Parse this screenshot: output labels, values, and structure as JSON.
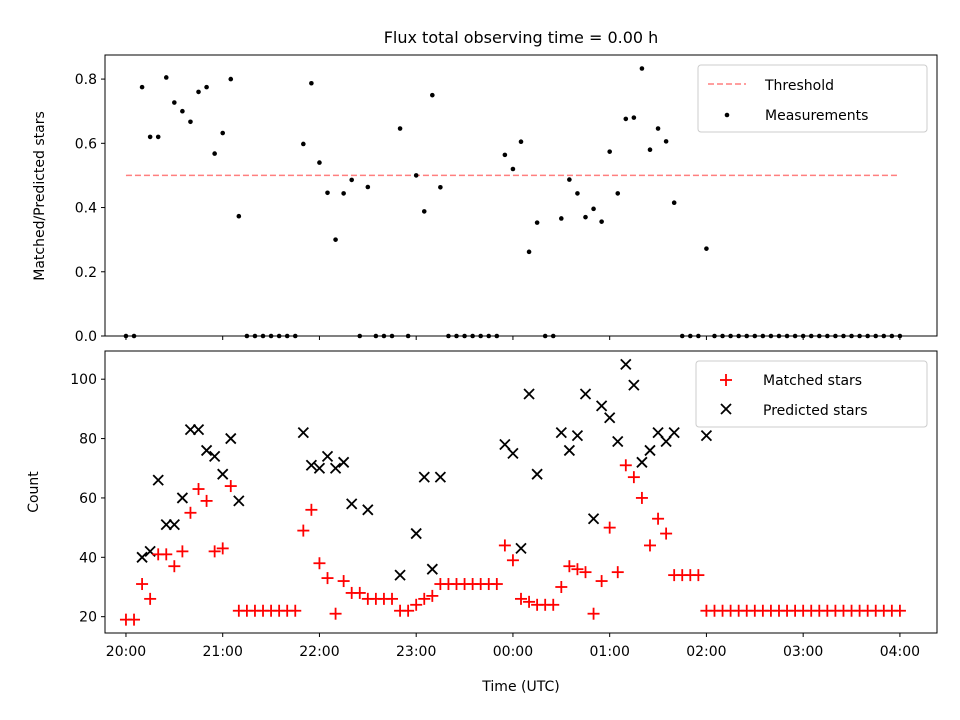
{
  "title": "Flux total observing time = 0.00 h",
  "chart_data": [
    {
      "type": "scatter",
      "panel": "top",
      "ylabel": "Matched/Predicted stars",
      "xlim": [
        "19:47",
        "04:23"
      ],
      "ylim": [
        0,
        0.875
      ],
      "yticks": [
        0.0,
        0.2,
        0.4,
        0.6,
        0.8
      ],
      "ytick_labels": [
        "0.0",
        "0.2",
        "0.4",
        "0.6",
        "0.8"
      ],
      "legend": {
        "position": "upper-right"
      },
      "threshold": {
        "name": "Threshold",
        "value": 0.5,
        "x_range": [
          "20:00",
          "04:00"
        ],
        "color": "#ff7f7f",
        "style": "dashed"
      },
      "series": [
        {
          "name": "Measurements",
          "color": "#000000",
          "marker": "dot",
          "x": [
            "20:00",
            "20:05",
            "20:10",
            "20:15",
            "20:20",
            "20:25",
            "20:30",
            "20:35",
            "20:40",
            "20:45",
            "20:50",
            "20:55",
            "21:00",
            "21:05",
            "21:10",
            "21:15",
            "21:20",
            "21:25",
            "21:30",
            "21:35",
            "21:40",
            "21:45",
            "21:50",
            "21:55",
            "22:00",
            "22:05",
            "22:10",
            "22:15",
            "22:20",
            "22:25",
            "22:30",
            "22:35",
            "22:40",
            "22:45",
            "22:50",
            "22:55",
            "23:00",
            "23:05",
            "23:10",
            "23:15",
            "23:20",
            "23:25",
            "23:30",
            "23:35",
            "23:40",
            "23:45",
            "23:50",
            "23:55",
            "00:00",
            "00:05",
            "00:10",
            "00:15",
            "00:20",
            "00:25",
            "00:30",
            "00:35",
            "00:40",
            "00:45",
            "00:50",
            "00:55",
            "01:00",
            "01:05",
            "01:10",
            "01:15",
            "01:20",
            "01:25",
            "01:30",
            "01:35",
            "01:40",
            "01:45",
            "01:50",
            "01:55",
            "02:00",
            "02:05",
            "02:10",
            "02:15",
            "02:20",
            "02:25",
            "02:30",
            "02:35",
            "02:40",
            "02:45",
            "02:50",
            "02:55",
            "03:00",
            "03:05",
            "03:10",
            "03:15",
            "03:20",
            "03:25",
            "03:30",
            "03:35",
            "03:40",
            "03:45",
            "03:50",
            "03:55",
            "04:00"
          ],
          "y": [
            0,
            0,
            0.775,
            0.62,
            0.62,
            0.805,
            0.727,
            0.7,
            0.667,
            0.76,
            0.775,
            0.568,
            0.632,
            0.8,
            0.373,
            0,
            0,
            0,
            0,
            0,
            0,
            0,
            0.598,
            0.787,
            0.54,
            0.446,
            0.3,
            0.444,
            0.486,
            0,
            0.464,
            0,
            0,
            0,
            0.646,
            0,
            0.5,
            0.388,
            0.75,
            0.463,
            0,
            0,
            0,
            0,
            0,
            0,
            0,
            0.564,
            0.52,
            0.605,
            0.262,
            0.353,
            0,
            0,
            0.366,
            0.487,
            0.444,
            0.37,
            0.396,
            0.356,
            0.574,
            0.444,
            0.676,
            0.68,
            0.833,
            0.58,
            0.646,
            0.606,
            0.415,
            0,
            0,
            0,
            0.272,
            0,
            0,
            0,
            0,
            0,
            0,
            0,
            0,
            0,
            0,
            0,
            0,
            0,
            0,
            0,
            0,
            0,
            0,
            0,
            0,
            0,
            0,
            0,
            0
          ]
        }
      ]
    },
    {
      "type": "scatter",
      "panel": "bottom",
      "xlabel": "Time (UTC)",
      "ylabel": "Count",
      "xlim": [
        "19:47",
        "04:23"
      ],
      "ylim": [
        14.5,
        109.5
      ],
      "xticks": [
        "20:00",
        "21:00",
        "22:00",
        "23:00",
        "00:00",
        "01:00",
        "02:00",
        "03:00",
        "04:00"
      ],
      "yticks": [
        20,
        40,
        60,
        80,
        100
      ],
      "ytick_labels": [
        "20",
        "40",
        "60",
        "80",
        "100"
      ],
      "legend": {
        "position": "upper-right"
      },
      "x": [
        "20:00",
        "20:05",
        "20:10",
        "20:15",
        "20:20",
        "20:25",
        "20:30",
        "20:35",
        "20:40",
        "20:45",
        "20:50",
        "20:55",
        "21:00",
        "21:05",
        "21:10",
        "21:15",
        "21:20",
        "21:25",
        "21:30",
        "21:35",
        "21:40",
        "21:45",
        "21:50",
        "21:55",
        "22:00",
        "22:05",
        "22:10",
        "22:15",
        "22:20",
        "22:25",
        "22:30",
        "22:35",
        "22:40",
        "22:45",
        "22:50",
        "22:55",
        "23:00",
        "23:05",
        "23:10",
        "23:15",
        "23:20",
        "23:25",
        "23:30",
        "23:35",
        "23:40",
        "23:45",
        "23:50",
        "23:55",
        "00:00",
        "00:05",
        "00:10",
        "00:15",
        "00:20",
        "00:25",
        "00:30",
        "00:35",
        "00:40",
        "00:45",
        "00:50",
        "00:55",
        "01:00",
        "01:05",
        "01:10",
        "01:15",
        "01:20",
        "01:25",
        "01:30",
        "01:35",
        "01:40",
        "01:45",
        "01:50",
        "01:55",
        "02:00",
        "02:05",
        "02:10",
        "02:15",
        "02:20",
        "02:25",
        "02:30",
        "02:35",
        "02:40",
        "02:45",
        "02:50",
        "02:55",
        "03:00",
        "03:05",
        "03:10",
        "03:15",
        "03:20",
        "03:25",
        "03:30",
        "03:35",
        "03:40",
        "03:45",
        "03:50",
        "03:55",
        "04:00"
      ],
      "series": [
        {
          "name": "Matched stars",
          "color": "#ff0000",
          "marker": "plus",
          "y": [
            19,
            19,
            31,
            26,
            41,
            41,
            37,
            42,
            55,
            63,
            59,
            42,
            43,
            64,
            22,
            22,
            22,
            22,
            22,
            22,
            22,
            22,
            49,
            56,
            38,
            33,
            21,
            32,
            28,
            28,
            26,
            26,
            26,
            26,
            22,
            22,
            24,
            26,
            27,
            31,
            31,
            31,
            31,
            31,
            31,
            31,
            31,
            44,
            39,
            26,
            25,
            24,
            24,
            24,
            30,
            37,
            36,
            35,
            21,
            32,
            50,
            35,
            71,
            67,
            60,
            44,
            53,
            48,
            34,
            34,
            34,
            34,
            22,
            22,
            22,
            22,
            22,
            22,
            22,
            22,
            22,
            22,
            22,
            22,
            22,
            22,
            22,
            22,
            22,
            22,
            22,
            22,
            22,
            22,
            22,
            22,
            22
          ]
        },
        {
          "name": "Predicted stars",
          "color": "#000000",
          "marker": "cross",
          "y": [
            null,
            null,
            40,
            42,
            66,
            51,
            51,
            60,
            83,
            83,
            76,
            74,
            68,
            80,
            59,
            null,
            null,
            null,
            null,
            null,
            null,
            null,
            82,
            71,
            70,
            74,
            70,
            72,
            58,
            null,
            56,
            null,
            null,
            null,
            34,
            null,
            48,
            67,
            36,
            67,
            null,
            null,
            null,
            null,
            null,
            null,
            null,
            78,
            75,
            43,
            95,
            68,
            null,
            null,
            82,
            76,
            81,
            95,
            53,
            91,
            87,
            79,
            105,
            98,
            72,
            76,
            82,
            79,
            82,
            null,
            null,
            null,
            81,
            null,
            null,
            null,
            null,
            null,
            null,
            null,
            null,
            null,
            null,
            null,
            null,
            null,
            null,
            null,
            null,
            null,
            null,
            null,
            null,
            null,
            null,
            null,
            null
          ]
        }
      ]
    }
  ]
}
